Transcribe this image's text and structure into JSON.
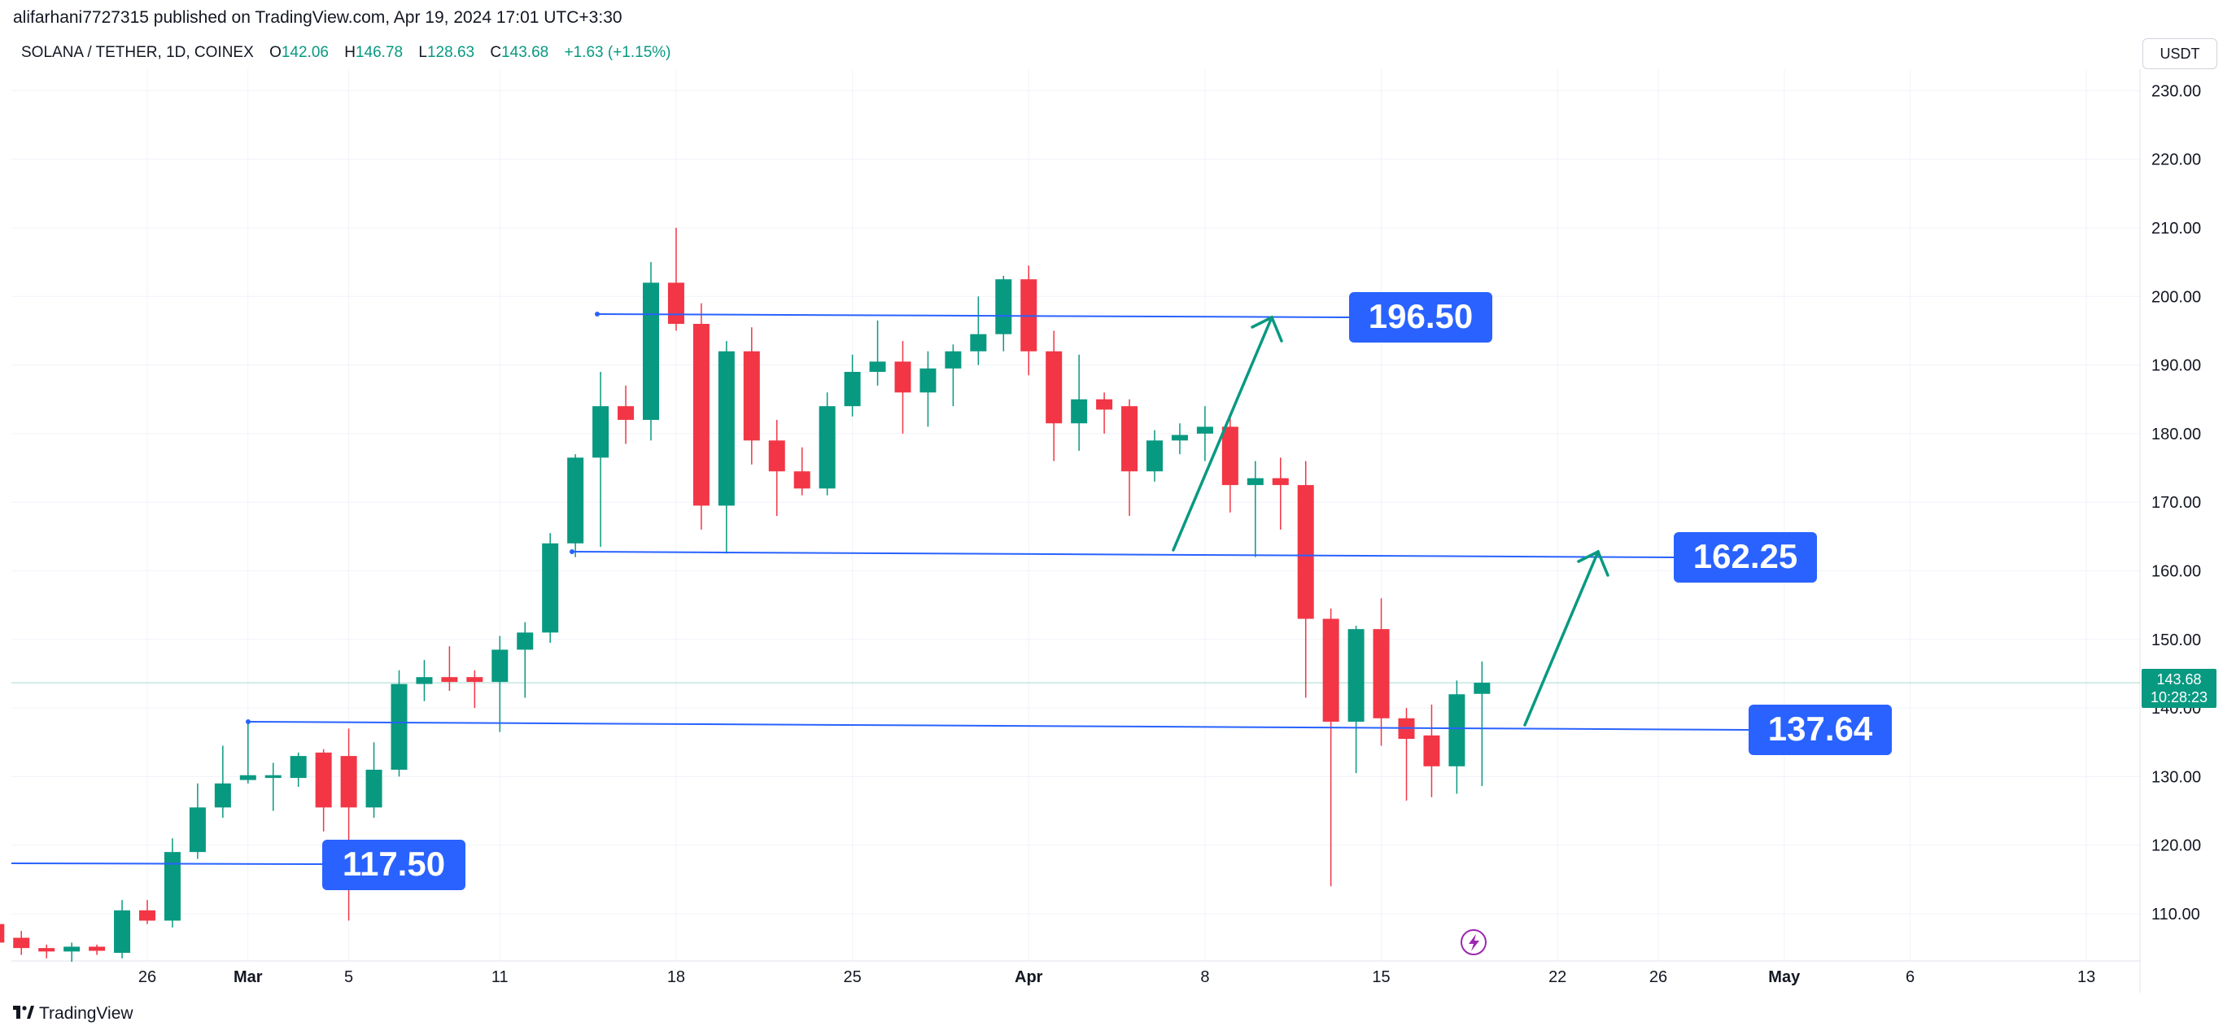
{
  "header": {
    "published": "alifarhani7727315 published on TradingView.com, Apr 19, 2024 17:01 UTC+3:30"
  },
  "symbol": {
    "name": "SOLANA / TETHER, 1D, COINEX",
    "o_label": "O",
    "o": "142.06",
    "h_label": "H",
    "h": "146.78",
    "l_label": "L",
    "l": "128.63",
    "c_label": "C",
    "c": "143.68",
    "change": "+1.63 (+1.15%)"
  },
  "currency_button": "USDT",
  "last_price": {
    "price": "143.68",
    "countdown": "10:28:23",
    "value": 143.68
  },
  "footer": {
    "brand": "TradingView"
  },
  "colors": {
    "up": "#089981",
    "down": "#F23645",
    "level": "#2962FF",
    "arrow": "#089981",
    "grid": "#F0F3FA"
  },
  "icons": {
    "flash": "lightning-icon",
    "logo": "tradingview-logo-icon"
  },
  "chart_data": {
    "type": "candlestick",
    "title": "SOLANA / TETHER, 1D, COINEX",
    "ylim": [
      103,
      233
    ],
    "y_ticks": [
      230,
      220,
      210,
      200,
      190,
      180,
      170,
      160,
      150,
      140,
      130,
      120,
      110
    ],
    "y_tick_labels": [
      "230.00",
      "220.00",
      "210.00",
      "200.00",
      "190.00",
      "180.00",
      "170.00",
      "160.00",
      "150.00",
      "140.00",
      "130.00",
      "120.00",
      "110.00"
    ],
    "x_ticks": [
      {
        "day": 26,
        "label": "26"
      },
      {
        "day": 30,
        "label": "Mar"
      },
      {
        "day": 34,
        "label": "5"
      },
      {
        "day": 40,
        "label": "11"
      },
      {
        "day": 47,
        "label": "18"
      },
      {
        "day": 54,
        "label": "25"
      },
      {
        "day": 61,
        "label": "Apr"
      },
      {
        "day": 68,
        "label": "8"
      },
      {
        "day": 75,
        "label": "15"
      },
      {
        "day": 82,
        "label": "22"
      },
      {
        "day": 86,
        "label": "26"
      },
      {
        "day": 91,
        "label": "May"
      },
      {
        "day": 96,
        "label": "6"
      },
      {
        "day": 103,
        "label": "13"
      }
    ],
    "candles": [
      {
        "day": 20,
        "o": 108.5,
        "h": 110.0,
        "l": 105.0,
        "c": 105.8
      },
      {
        "day": 21,
        "o": 106.5,
        "h": 107.5,
        "l": 104.0,
        "c": 105.0
      },
      {
        "day": 22,
        "o": 105.0,
        "h": 105.5,
        "l": 103.5,
        "c": 104.5
      },
      {
        "day": 23,
        "o": 104.5,
        "h": 105.8,
        "l": 103.0,
        "c": 105.2
      },
      {
        "day": 24,
        "o": 105.2,
        "h": 105.5,
        "l": 104.0,
        "c": 104.6
      },
      {
        "day": 25,
        "o": 104.3,
        "h": 112.0,
        "l": 103.5,
        "c": 110.5
      },
      {
        "day": 26,
        "o": 110.5,
        "h": 112.0,
        "l": 108.5,
        "c": 109.0
      },
      {
        "day": 27,
        "o": 109.0,
        "h": 121.0,
        "l": 108.0,
        "c": 119.0
      },
      {
        "day": 28,
        "o": 119.0,
        "h": 129.0,
        "l": 118.0,
        "c": 125.5
      },
      {
        "day": 29,
        "o": 125.5,
        "h": 134.5,
        "l": 124.0,
        "c": 129.0
      },
      {
        "day": 30,
        "o": 129.5,
        "h": 138.0,
        "l": 129.0,
        "c": 130.2
      },
      {
        "day": 31,
        "o": 129.8,
        "h": 132.0,
        "l": 125.0,
        "c": 130.2
      },
      {
        "day": 32,
        "o": 129.8,
        "h": 133.5,
        "l": 128.5,
        "c": 133.0
      },
      {
        "day": 33,
        "o": 133.5,
        "h": 134.0,
        "l": 122.0,
        "c": 125.5
      },
      {
        "day": 34,
        "o": 133.0,
        "h": 137.0,
        "l": 109.0,
        "c": 125.5
      },
      {
        "day": 35,
        "o": 125.5,
        "h": 135.0,
        "l": 124.0,
        "c": 131.0
      },
      {
        "day": 36,
        "o": 131.0,
        "h": 145.5,
        "l": 130.0,
        "c": 143.5
      },
      {
        "day": 37,
        "o": 143.5,
        "h": 147.0,
        "l": 141.0,
        "c": 144.5
      },
      {
        "day": 38,
        "o": 144.5,
        "h": 149.0,
        "l": 142.5,
        "c": 143.8
      },
      {
        "day": 39,
        "o": 144.5,
        "h": 145.5,
        "l": 140.0,
        "c": 143.8
      },
      {
        "day": 40,
        "o": 143.8,
        "h": 150.5,
        "l": 136.5,
        "c": 148.5
      },
      {
        "day": 41,
        "o": 148.5,
        "h": 152.5,
        "l": 141.5,
        "c": 151.0
      },
      {
        "day": 42,
        "o": 151.0,
        "h": 165.5,
        "l": 149.5,
        "c": 164.0
      },
      {
        "day": 43,
        "o": 164.0,
        "h": 177.0,
        "l": 162.0,
        "c": 176.5
      },
      {
        "day": 44,
        "o": 176.5,
        "h": 189.0,
        "l": 163.5,
        "c": 184.0
      },
      {
        "day": 45,
        "o": 184.0,
        "h": 187.0,
        "l": 178.5,
        "c": 182.0
      },
      {
        "day": 46,
        "o": 182.0,
        "h": 205.0,
        "l": 179.0,
        "c": 202.0
      },
      {
        "day": 47,
        "o": 202.0,
        "h": 210.0,
        "l": 195.0,
        "c": 196.0
      },
      {
        "day": 48,
        "o": 196.0,
        "h": 199.0,
        "l": 166.0,
        "c": 169.5
      },
      {
        "day": 49,
        "o": 169.5,
        "h": 193.5,
        "l": 162.5,
        "c": 192.0
      },
      {
        "day": 50,
        "o": 192.0,
        "h": 195.5,
        "l": 175.5,
        "c": 179.0
      },
      {
        "day": 51,
        "o": 179.0,
        "h": 182.0,
        "l": 168.0,
        "c": 174.5
      },
      {
        "day": 52,
        "o": 174.5,
        "h": 178.0,
        "l": 171.0,
        "c": 172.0
      },
      {
        "day": 53,
        "o": 172.0,
        "h": 186.0,
        "l": 171.0,
        "c": 184.0
      },
      {
        "day": 54,
        "o": 184.0,
        "h": 191.5,
        "l": 182.5,
        "c": 189.0
      },
      {
        "day": 55,
        "o": 189.0,
        "h": 196.5,
        "l": 187.0,
        "c": 190.5
      },
      {
        "day": 56,
        "o": 190.5,
        "h": 193.5,
        "l": 180.0,
        "c": 186.0
      },
      {
        "day": 57,
        "o": 186.0,
        "h": 192.0,
        "l": 181.0,
        "c": 189.5
      },
      {
        "day": 58,
        "o": 189.5,
        "h": 193.0,
        "l": 184.0,
        "c": 192.0
      },
      {
        "day": 59,
        "o": 192.0,
        "h": 200.0,
        "l": 190.0,
        "c": 194.5
      },
      {
        "day": 60,
        "o": 194.5,
        "h": 203.0,
        "l": 192.0,
        "c": 202.5
      },
      {
        "day": 61,
        "o": 202.5,
        "h": 204.5,
        "l": 188.5,
        "c": 192.0
      },
      {
        "day": 62,
        "o": 192.0,
        "h": 195.0,
        "l": 176.0,
        "c": 181.5
      },
      {
        "day": 63,
        "o": 181.5,
        "h": 191.5,
        "l": 177.5,
        "c": 185.0
      },
      {
        "day": 64,
        "o": 185.0,
        "h": 186.0,
        "l": 180.0,
        "c": 183.5
      },
      {
        "day": 65,
        "o": 184.0,
        "h": 185.0,
        "l": 168.0,
        "c": 174.5
      },
      {
        "day": 66,
        "o": 174.5,
        "h": 180.5,
        "l": 173.0,
        "c": 179.0
      },
      {
        "day": 67,
        "o": 179.0,
        "h": 181.5,
        "l": 177.0,
        "c": 179.8
      },
      {
        "day": 68,
        "o": 180.0,
        "h": 184.0,
        "l": 176.0,
        "c": 181.0
      },
      {
        "day": 69,
        "o": 181.0,
        "h": 182.5,
        "l": 168.5,
        "c": 172.5
      },
      {
        "day": 70,
        "o": 172.5,
        "h": 176.0,
        "l": 162.0,
        "c": 173.5
      },
      {
        "day": 71,
        "o": 173.5,
        "h": 176.5,
        "l": 166.0,
        "c": 172.5
      },
      {
        "day": 72,
        "o": 172.5,
        "h": 176.0,
        "l": 141.5,
        "c": 153.0
      },
      {
        "day": 73,
        "o": 153.0,
        "h": 154.5,
        "l": 114.0,
        "c": 138.0
      },
      {
        "day": 74,
        "o": 138.0,
        "h": 152.0,
        "l": 130.5,
        "c": 151.5
      },
      {
        "day": 75,
        "o": 151.5,
        "h": 156.0,
        "l": 134.5,
        "c": 138.5
      },
      {
        "day": 76,
        "o": 138.5,
        "h": 140.0,
        "l": 126.5,
        "c": 135.5
      },
      {
        "day": 77,
        "o": 136.0,
        "h": 140.5,
        "l": 127.0,
        "c": 131.5
      },
      {
        "day": 78,
        "o": 131.5,
        "h": 144.0,
        "l": 127.5,
        "c": 142.0
      },
      {
        "day": 79,
        "o": 142.06,
        "h": 146.78,
        "l": 128.63,
        "c": 143.68
      }
    ],
    "levels": [
      {
        "label": "196.50",
        "value": 196.5
      },
      {
        "label": "162.25",
        "value": 162.25
      },
      {
        "label": "137.64",
        "value": 137.64
      },
      {
        "label": "117.50",
        "value": 117.5
      }
    ]
  }
}
